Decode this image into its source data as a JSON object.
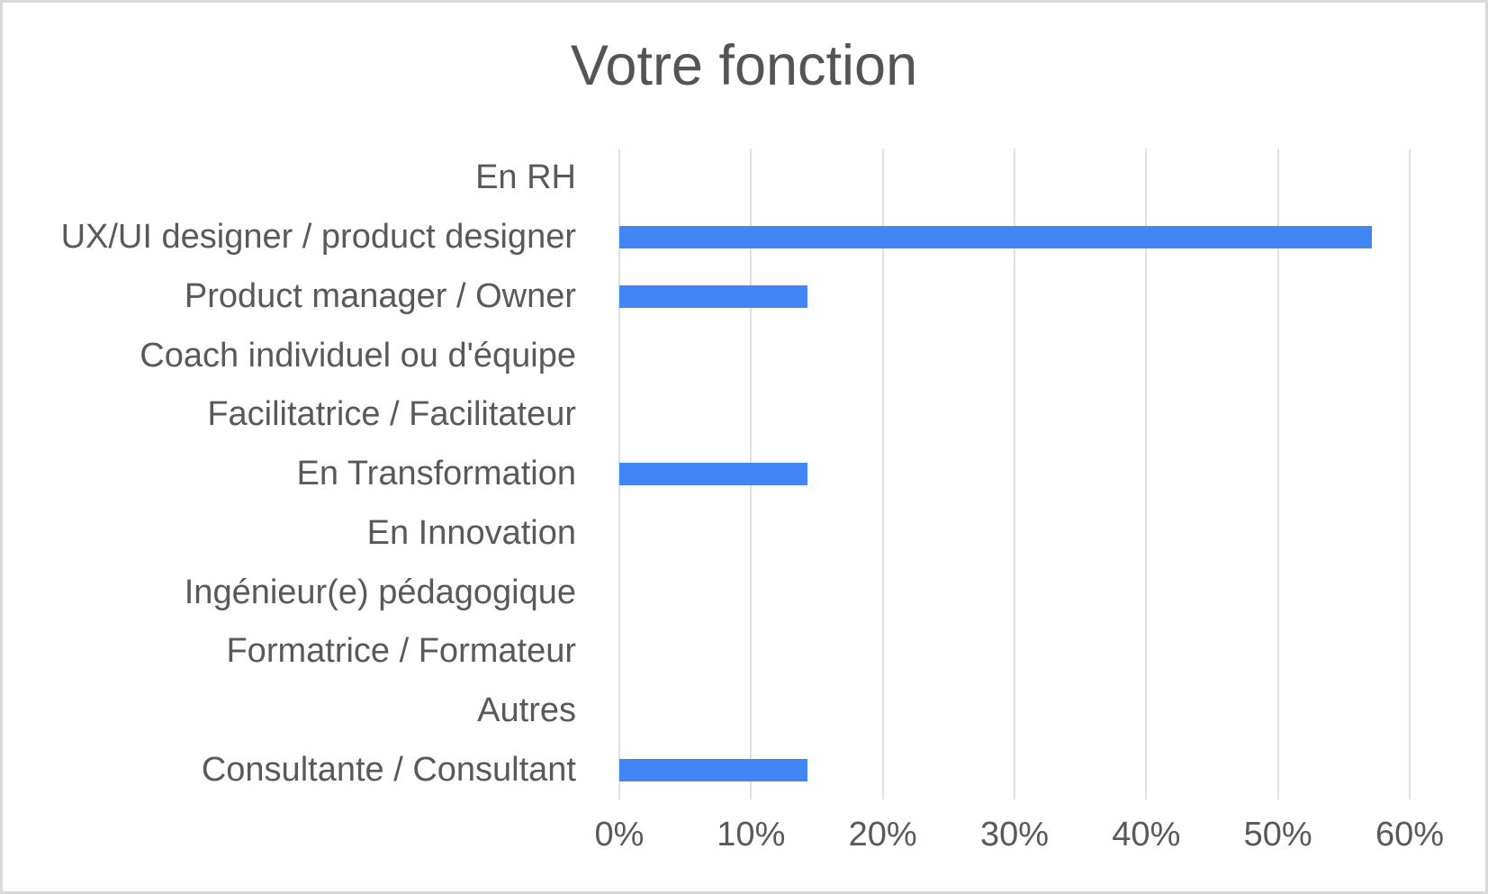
{
  "chart_data": {
    "type": "bar",
    "orientation": "horizontal",
    "title": "Votre fonction",
    "categories": [
      "En RH",
      "UX/UI designer / product designer",
      "Product manager / Owner",
      "Coach individuel ou d'équipe",
      "Facilitatrice / Facilitateur",
      "En Transformation",
      "En Innovation",
      "Ingénieur(e) pédagogique",
      "Formatrice / Formateur",
      "Autres",
      "Consultante / Consultant"
    ],
    "values": [
      0,
      57.1,
      14.3,
      0,
      0,
      14.3,
      0,
      0,
      0,
      0,
      14.3
    ],
    "value_suffix": "%",
    "xlabel": "",
    "ylabel": "",
    "xlim": [
      0,
      60
    ],
    "x_tick_values": [
      0,
      10,
      20,
      30,
      40,
      50,
      60
    ],
    "x_tick_labels": [
      "0%",
      "10%",
      "20%",
      "30%",
      "40%",
      "50%",
      "60%"
    ],
    "grid": "vertical",
    "legend": "none"
  },
  "colors": {
    "bar": "#4285f4",
    "gridline": "#e0e0e0",
    "title_text": "#545454",
    "label_text": "#595959",
    "frame_border": "#d9d9d9",
    "background": "#ffffff"
  }
}
